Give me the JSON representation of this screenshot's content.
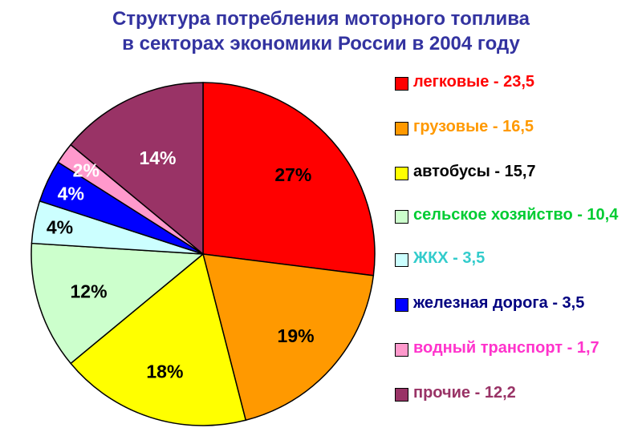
{
  "title_line1": "Структура потребления моторного топлива",
  "title_line2": "в секторах экономики России в 2004 году",
  "title_color": "#3333a0",
  "chart_data": {
    "type": "pie",
    "title": "Структура потребления моторного топлива в секторах экономики России в 2004 году",
    "start_angle_deg": 0,
    "direction": "clockwise",
    "slices": [
      {
        "pct_label": "27%",
        "percent": 27,
        "legend": "легковые - 23,5",
        "value": 23.5,
        "color": "#ff0000",
        "legend_color": "#ff0000",
        "label_color": "#000000"
      },
      {
        "pct_label": "19%",
        "percent": 19,
        "legend": "грузовые - 16,5",
        "value": 16.5,
        "color": "#ff9900",
        "legend_color": "#ff9900",
        "label_color": "#000000"
      },
      {
        "pct_label": "18%",
        "percent": 18,
        "legend": "автобусы - 15,7",
        "value": 15.7,
        "color": "#ffff00",
        "legend_color": "#000000",
        "label_color": "#000000"
      },
      {
        "pct_label": "12%",
        "percent": 12,
        "legend": "сельское хозяйство - 10,4",
        "value": 10.4,
        "color": "#ccffcc",
        "legend_color": "#00cc33",
        "label_color": "#000000"
      },
      {
        "pct_label": "4%",
        "percent": 4,
        "legend": "ЖКХ - 3,5",
        "value": 3.5,
        "color": "#ccffff",
        "legend_color": "#33cccc",
        "label_color": "#000000"
      },
      {
        "pct_label": "4%",
        "percent": 4,
        "legend": "железная дорога - 3,5",
        "value": 3.5,
        "color": "#0000ff",
        "legend_color": "#000080",
        "label_color": "#ffffff"
      },
      {
        "pct_label": "2%",
        "percent": 2,
        "legend": "водный транспорт - 1,7",
        "value": 1.7,
        "color": "#ff99cc",
        "legend_color": "#ff33cc",
        "label_color": "#ffffff"
      },
      {
        "pct_label": "14%",
        "percent": 14,
        "legend": "прочие - 12,2",
        "value": 12.2,
        "color": "#993366",
        "legend_color": "#993366",
        "label_color": "#ffffff"
      }
    ],
    "legend_position": "right"
  }
}
